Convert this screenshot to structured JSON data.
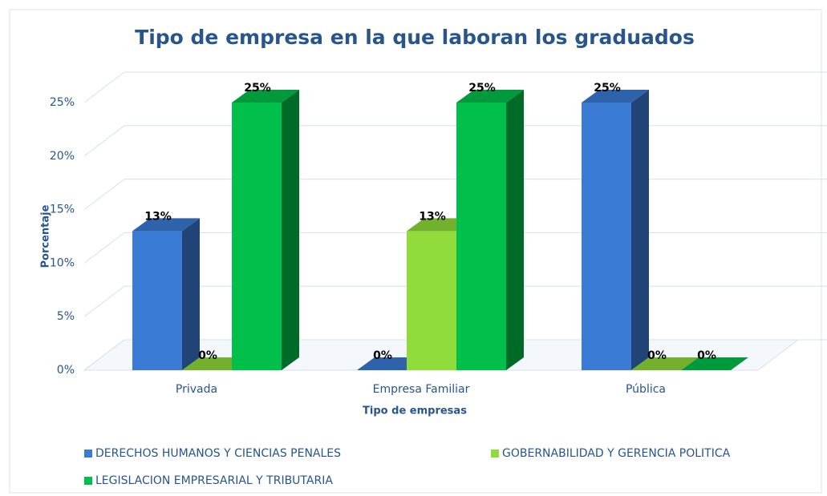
{
  "chart_data": {
    "type": "bar3d",
    "title": "Tipo de empresa en la que laboran los graduados",
    "x_label": "Tipo de empresas",
    "y_label": "Porcentaje",
    "categories": [
      "Privada",
      "Empresa Familiar",
      "Pública"
    ],
    "series": [
      {
        "name": "DERECHOS HUMANOS Y CIENCIAS PENALES",
        "color": "#3a7bd5",
        "values": [
          13,
          0,
          25
        ],
        "value_labels": [
          "13%",
          "0%",
          "25%"
        ]
      },
      {
        "name": "GOBERNABILIDAD Y GERENCIA POLITICA",
        "color": "#8fdc3a",
        "values": [
          0,
          13,
          0
        ],
        "value_labels": [
          "0%",
          "13%",
          "0%"
        ]
      },
      {
        "name": "LEGISLACION EMPRESARIAL Y TRIBUTARIA",
        "color": "#00c04b",
        "values": [
          25,
          25,
          0
        ],
        "value_labels": [
          "25%",
          "25%",
          "0%"
        ]
      }
    ],
    "ylim": [
      0,
      25
    ],
    "yticks": [
      {
        "value": 0,
        "label": "0%"
      },
      {
        "value": 5,
        "label": "5%"
      },
      {
        "value": 10,
        "label": "10%"
      },
      {
        "value": 15,
        "label": "15%"
      },
      {
        "value": 20,
        "label": "20%"
      },
      {
        "value": 25,
        "label": "25%"
      }
    ],
    "grid": true
  }
}
